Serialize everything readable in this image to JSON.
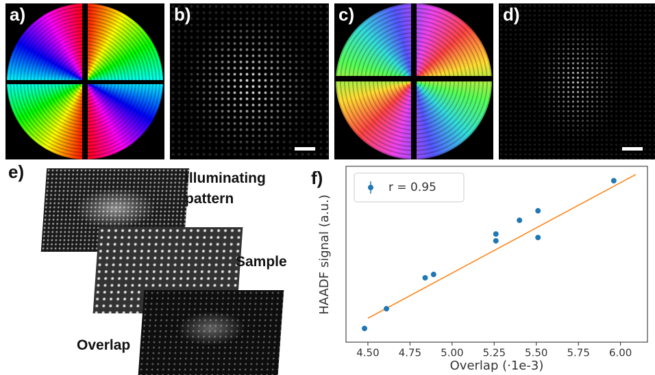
{
  "panel_labels": [
    "a)",
    "b)",
    "c)",
    "d)",
    "e)"
  ],
  "stack_labels": [
    "Illuminating pattern",
    "Sample",
    "Overlap"
  ],
  "chart_data": {
    "type": "scatter",
    "panel_label": "f)",
    "x_label": "Overlap (·1e-3)",
    "y_label": "HAADF signal (a.u.)",
    "x": [
      4.48,
      4.61,
      4.84,
      4.89,
      5.26,
      5.26,
      5.4,
      5.51,
      5.51,
      5.96
    ],
    "series": [
      {
        "name": "r = 0.95",
        "color": "#1f77b4",
        "values": [
          0.078,
          0.19,
          0.366,
          0.385,
          0.615,
          0.576,
          0.693,
          0.747,
          0.595,
          0.918
        ]
      }
    ],
    "fit": {
      "x": [
        4.5,
        6.09
      ],
      "values": [
        0.136,
        0.953
      ],
      "color": "#ff7f0e"
    },
    "xlim": [
      4.37,
      6.16
    ],
    "ylim": [
      0,
      1
    ],
    "xticks": [
      {
        "value": 4.5,
        "label": "4.50"
      },
      4.75,
      {
        "value": 5,
        "label": "5.00"
      },
      5.25,
      {
        "value": 5.5,
        "label": "5.50"
      },
      5.75,
      {
        "value": 6,
        "label": "6.00"
      }
    ],
    "legend": "upper left"
  }
}
